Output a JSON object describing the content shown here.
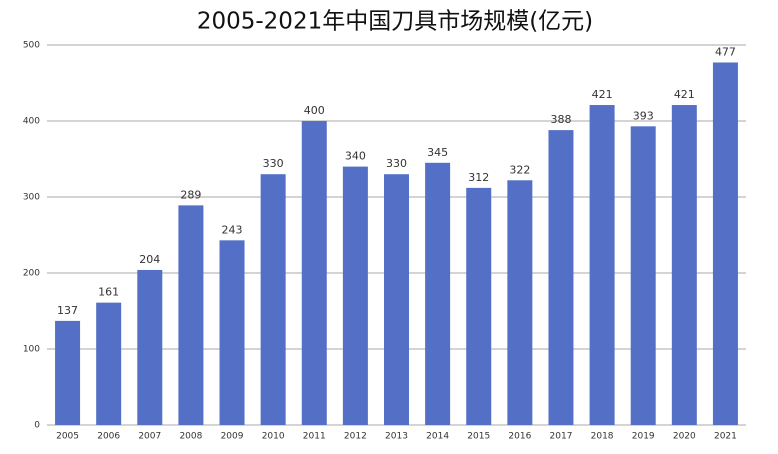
{
  "chart_data": {
    "type": "bar",
    "title": "2005-2021年中国刀具市场规模(亿元)",
    "categories": [
      "2005",
      "2006",
      "2007",
      "2008",
      "2009",
      "2010",
      "2011",
      "2012",
      "2013",
      "2014",
      "2015",
      "2016",
      "2017",
      "2018",
      "2019",
      "2020",
      "2021"
    ],
    "values": [
      137,
      161,
      204,
      289,
      243,
      330,
      400,
      340,
      330,
      345,
      312,
      322,
      388,
      421,
      393,
      421,
      477
    ],
    "color": "#5470c6",
    "ylim": [
      0,
      500
    ],
    "yticks": [
      0,
      100,
      200,
      300,
      400,
      500
    ],
    "grid": true
  }
}
